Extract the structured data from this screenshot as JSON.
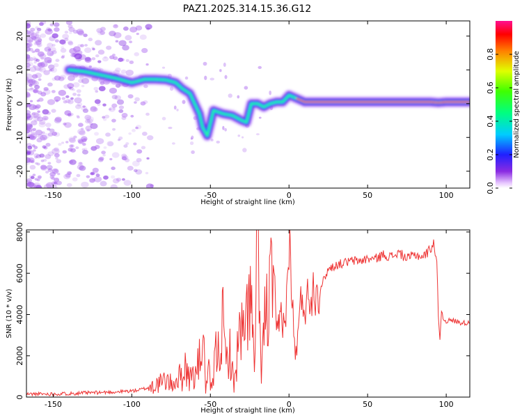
{
  "title": "PAZ1.2025.314.15.36.G12",
  "chart_data": [
    {
      "type": "heatmap",
      "name": "spectrogram",
      "xlabel": "Height of straight line (km)",
      "ylabel": "Frequency (Hz)",
      "xlim": [
        -167,
        115
      ],
      "ylim": [
        -25,
        24.5
      ],
      "xticks": [
        -150,
        -100,
        -50,
        0,
        50,
        100
      ],
      "yticks": [
        -20,
        -10,
        0,
        10,
        20
      ],
      "colorbar": {
        "label": "Normalized spectral amplitude",
        "range": [
          0,
          1
        ],
        "ticks": [
          0.0,
          0.2,
          0.4,
          0.6,
          0.8
        ],
        "tick_labels": [
          "0.0",
          "0.2",
          "0.4",
          "0.6",
          "0.8"
        ]
      },
      "ridge": {
        "description": "dominant frequency trace (km, Hz)",
        "x": [
          -140,
          -130,
          -120,
          -110,
          -100,
          -92,
          -85,
          -78,
          -72,
          -68,
          -63,
          -60,
          -57,
          -55,
          -52,
          -48,
          -42,
          -36,
          -30,
          -27,
          -24,
          -20,
          -16,
          -12,
          -8,
          -4,
          0,
          5,
          10,
          20,
          30,
          50,
          70,
          80,
          90,
          95,
          100,
          110,
          115
        ],
        "y": [
          10,
          9.5,
          8.5,
          7.5,
          6.2,
          7.2,
          7.2,
          7,
          6.2,
          4.5,
          3,
          0,
          -3,
          -7,
          -9.5,
          -2,
          -3,
          -3.5,
          -5,
          -5.5,
          0,
          0,
          -1,
          0,
          0.5,
          0.5,
          2.5,
          1.5,
          0.5,
          0.5,
          0.5,
          0.5,
          0.5,
          0.5,
          0.5,
          0.3,
          0.5,
          0.5,
          0.5
        ]
      }
    },
    {
      "type": "line",
      "name": "snr",
      "xlabel": "Height of straight line (km)",
      "ylabel": "SNR (10 * v/v)",
      "xlim": [
        -167,
        115
      ],
      "ylim": [
        0,
        8100
      ],
      "xticks": [
        -150,
        -100,
        -50,
        0,
        50,
        100
      ],
      "yticks": [
        0,
        2000,
        4000,
        6000,
        8000
      ],
      "color": "#ee3333",
      "series": [
        {
          "name": "SNR",
          "x": [
            -167,
            -150,
            -130,
            -110,
            -100,
            -95,
            -90,
            -85,
            -80,
            -78,
            -75,
            -72,
            -70,
            -68,
            -66,
            -63,
            -62,
            -60,
            -58,
            -56,
            -55,
            -53,
            -51,
            -49,
            -47,
            -45,
            -42,
            -40,
            -38,
            -35,
            -32,
            -30,
            -28,
            -25,
            -22,
            -20,
            -18,
            -15,
            -12,
            -10,
            -8,
            -5,
            -3,
            -1,
            0,
            2,
            4,
            6,
            8,
            10,
            15,
            20,
            25,
            30,
            35,
            40,
            45,
            50,
            55,
            60,
            65,
            70,
            75,
            80,
            85,
            88,
            90,
            92,
            93,
            94,
            95,
            96,
            97,
            98,
            100,
            105,
            110,
            115
          ],
          "y": [
            150,
            150,
            200,
            250,
            300,
            350,
            450,
            600,
            700,
            900,
            600,
            800,
            1000,
            900,
            1600,
            700,
            1300,
            900,
            1500,
            2000,
            3300,
            500,
            1100,
            200,
            2000,
            2200,
            3500,
            1500,
            2500,
            500,
            2800,
            3100,
            2700,
            5600,
            1200,
            8300,
            1300,
            3900,
            4800,
            6600,
            2800,
            4100,
            3500,
            5000,
            8000,
            4600,
            1900,
            3200,
            4900,
            4500,
            5200,
            5300,
            6200,
            6400,
            6500,
            6600,
            6600,
            6700,
            6700,
            6900,
            6800,
            7000,
            6700,
            6900,
            6800,
            7000,
            7200,
            7500,
            7000,
            6500,
            4000,
            2800,
            4200,
            3800,
            3700,
            3700,
            3600,
            3600
          ]
        }
      ]
    }
  ]
}
